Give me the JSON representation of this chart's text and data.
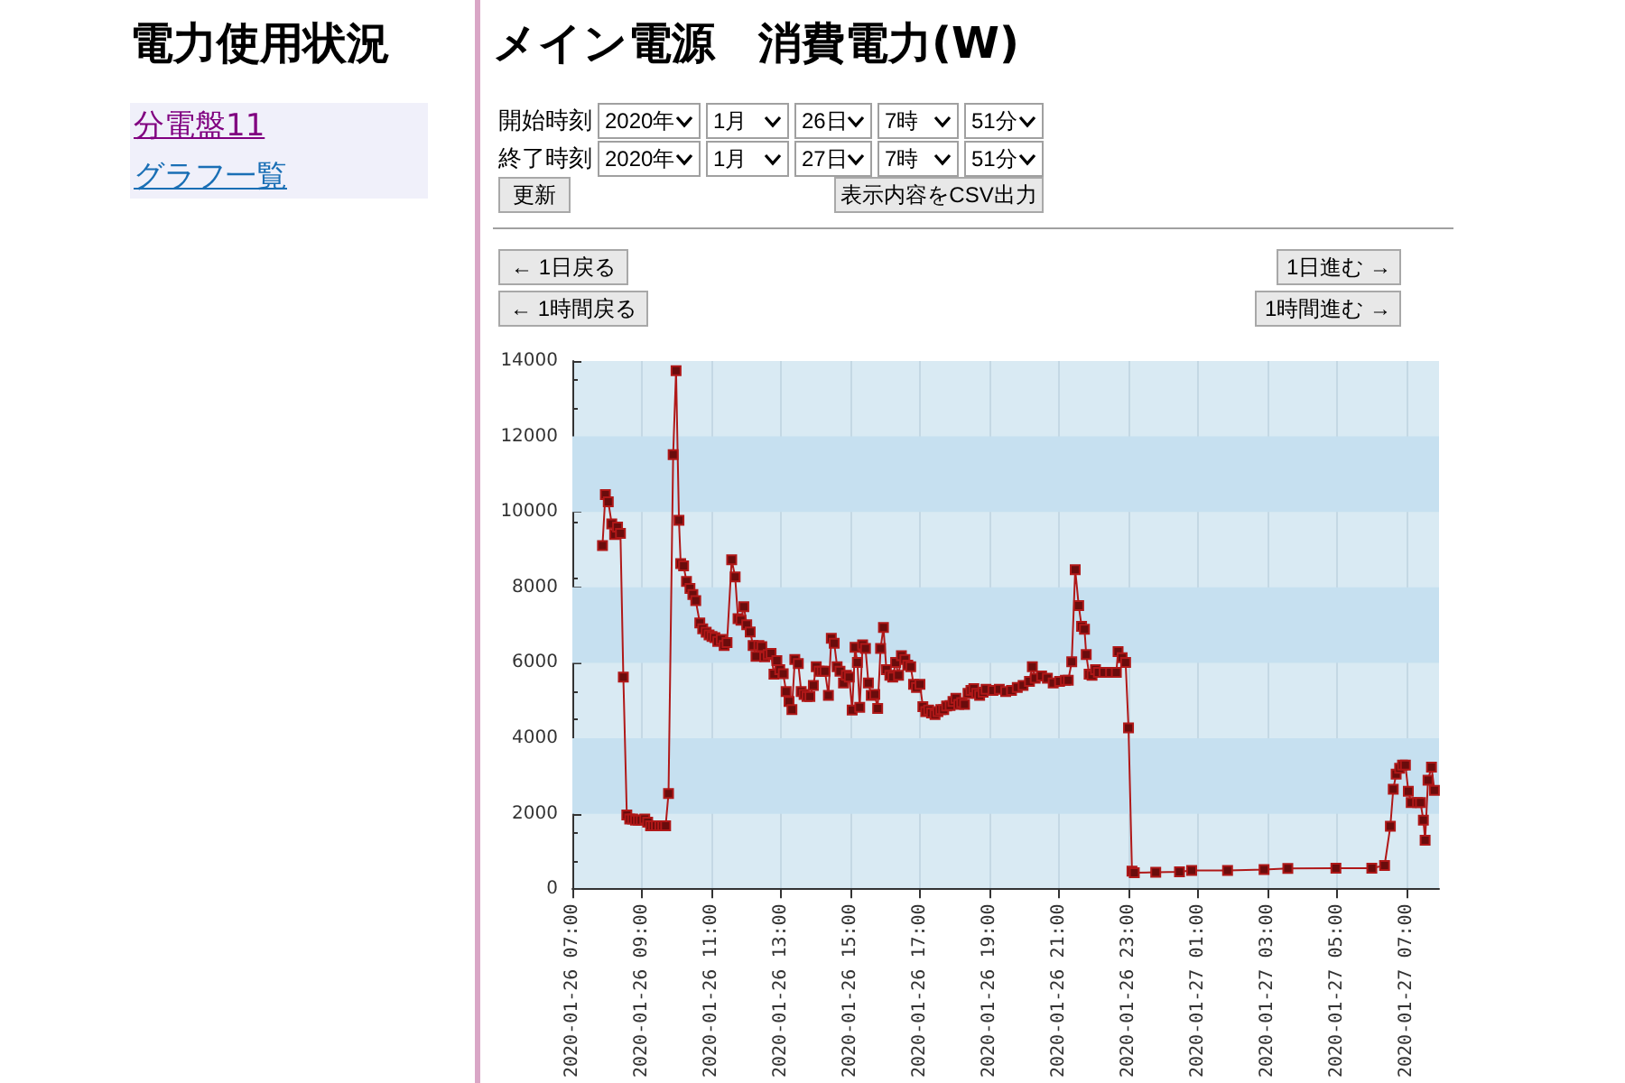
{
  "chart_data": {
    "type": "line",
    "title": "メイン電源　消費電力(W)",
    "annotations": [
      "電力使用状況",
      "分電盤11",
      "グラフ一覧",
      "開始時刻",
      "2020年",
      "1月",
      "26日",
      "7時",
      "51分",
      "終了時刻",
      "2020年",
      "1月",
      "27日",
      "7時",
      "51分",
      "更新",
      "表示内容をCSV出力",
      "← 1日戻る",
      "← 1時間戻る",
      "1日進む →",
      "1時間進む →"
    ],
    "x": [
      "2020-01-26T07:52",
      "2020-01-26T07:57",
      "2020-01-26T08:02",
      "2020-01-26T08:08",
      "2020-01-26T08:13",
      "2020-01-26T08:18",
      "2020-01-26T08:23",
      "2020-01-26T08:28",
      "2020-01-26T08:34",
      "2020-01-26T08:39",
      "2020-01-26T08:44",
      "2020-01-26T08:49",
      "2020-01-26T08:54",
      "2020-01-26T08:59",
      "2020-01-26T09:05",
      "2020-01-26T09:10",
      "2020-01-26T09:15",
      "2020-01-26T09:20",
      "2020-01-26T09:25",
      "2020-01-26T09:31",
      "2020-01-26T09:36",
      "2020-01-26T09:41",
      "2020-01-26T09:46",
      "2020-01-26T09:54",
      "2020-01-26T09:59",
      "2020-01-26T10:04",
      "2020-01-26T10:07",
      "2020-01-26T10:12",
      "2020-01-26T10:17",
      "2020-01-26T10:23",
      "2020-01-26T10:28",
      "2020-01-26T10:33",
      "2020-01-26T10:40",
      "2020-01-26T10:45",
      "2020-01-26T10:51",
      "2020-01-26T10:56",
      "2020-01-26T11:01",
      "2020-01-26T11:06",
      "2020-01-26T11:11",
      "2020-01-26T11:17",
      "2020-01-26T11:22",
      "2020-01-26T11:27",
      "2020-01-26T11:35",
      "2020-01-26T11:41",
      "2020-01-26T11:46",
      "2020-01-26T11:51",
      "2020-01-26T11:56",
      "2020-01-26T12:01",
      "2020-01-26T12:07",
      "2020-01-26T12:12",
      "2020-01-26T12:17",
      "2020-01-26T12:22",
      "2020-01-26T12:27",
      "2020-01-26T12:32",
      "2020-01-26T12:38",
      "2020-01-26T12:43",
      "2020-01-26T12:48",
      "2020-01-26T12:53",
      "2020-01-26T12:58",
      "2020-01-26T13:04",
      "2020-01-26T13:09",
      "2020-01-26T13:14",
      "2020-01-26T13:19",
      "2020-01-26T13:24",
      "2020-01-26T13:30",
      "2020-01-26T13:35",
      "2020-01-26T13:40",
      "2020-01-26T13:45",
      "2020-01-26T13:50",
      "2020-01-26T13:56",
      "2020-01-26T14:01",
      "2020-01-26T14:06",
      "2020-01-26T14:11",
      "2020-01-26T14:16",
      "2020-01-26T14:22",
      "2020-01-26T14:27",
      "2020-01-26T14:32",
      "2020-01-26T14:37",
      "2020-01-26T14:42",
      "2020-01-26T14:48",
      "2020-01-26T14:53",
      "2020-01-26T14:58",
      "2020-01-26T15:03",
      "2020-01-26T15:08",
      "2020-01-26T15:12",
      "2020-01-26T15:16",
      "2020-01-26T15:21",
      "2020-01-26T15:26",
      "2020-01-26T15:31",
      "2020-01-26T15:36",
      "2020-01-26T15:42",
      "2020-01-26T15:47",
      "2020-01-26T15:52",
      "2020-01-26T15:57",
      "2020-01-26T16:02",
      "2020-01-26T16:08",
      "2020-01-26T16:13",
      "2020-01-26T16:18",
      "2020-01-26T16:23",
      "2020-01-26T16:28",
      "2020-01-26T16:34",
      "2020-01-26T16:39",
      "2020-01-26T16:44",
      "2020-01-26T16:49",
      "2020-01-26T16:54",
      "2020-01-26T17:00",
      "2020-01-26T17:05",
      "2020-01-26T17:10",
      "2020-01-26T17:15",
      "2020-01-26T17:20",
      "2020-01-26T17:26",
      "2020-01-26T17:31",
      "2020-01-26T17:36",
      "2020-01-26T17:41",
      "2020-01-26T17:46",
      "2020-01-26T17:52",
      "2020-01-26T17:57",
      "2020-01-26T18:02",
      "2020-01-26T18:07",
      "2020-01-26T18:12",
      "2020-01-26T18:17",
      "2020-01-26T18:23",
      "2020-01-26T18:28",
      "2020-01-26T18:33",
      "2020-01-26T18:38",
      "2020-01-26T18:43",
      "2020-01-26T18:49",
      "2020-01-26T18:54",
      "2020-01-26T19:06",
      "2020-01-26T19:17",
      "2020-01-26T19:28",
      "2020-01-26T19:38",
      "2020-01-26T19:48",
      "2020-01-26T19:58",
      "2020-01-26T20:09",
      "2020-01-26T20:14",
      "2020-01-26T20:19",
      "2020-01-26T20:30",
      "2020-01-26T20:40",
      "2020-01-26T20:50",
      "2020-01-26T21:01",
      "2020-01-26T21:11",
      "2020-01-26T21:16",
      "2020-01-26T21:22",
      "2020-01-26T21:28",
      "2020-01-26T21:34",
      "2020-01-26T21:39",
      "2020-01-26T21:44",
      "2020-01-26T21:47",
      "2020-01-26T21:52",
      "2020-01-26T21:57",
      "2020-01-26T22:03",
      "2020-01-26T22:08",
      "2020-01-26T22:18",
      "2020-01-26T22:29",
      "2020-01-26T22:39",
      "2020-01-26T22:42",
      "2020-01-26T22:49",
      "2020-01-26T22:55",
      "2020-01-26T23:00",
      "2020-01-26T23:06",
      "2020-01-26T23:10",
      "2020-01-26T23:47",
      "2020-01-27T00:28",
      "2020-01-27T00:49",
      "2020-01-27T01:51",
      "2020-01-27T02:54",
      "2020-01-27T03:35",
      "2020-01-27T04:58",
      "2020-01-27T06:00",
      "2020-01-27T06:22",
      "2020-01-27T06:32",
      "2020-01-27T06:37",
      "2020-01-27T06:42",
      "2020-01-27T06:48",
      "2020-01-27T06:53",
      "2020-01-27T06:58",
      "2020-01-27T07:03",
      "2020-01-27T07:08",
      "2020-01-27T07:19",
      "2020-01-27T07:24",
      "2020-01-27T07:29",
      "2020-01-27T07:32",
      "2020-01-27T07:37",
      "2020-01-27T07:43",
      "2020-01-27T07:48"
    ],
    "series": [
      {
        "color": "#b01818",
        "values": [
          9110,
          10460,
          10270,
          9680,
          9400,
          9600,
          9430,
          5620,
          1970,
          1860,
          1860,
          1830,
          1830,
          1830,
          1860,
          1780,
          1680,
          1680,
          1680,
          1680,
          1680,
          1680,
          2540,
          11520,
          13740,
          9780,
          8630,
          8570,
          8160,
          7970,
          7810,
          7650,
          7060,
          6900,
          6810,
          6740,
          6700,
          6670,
          6570,
          6620,
          6460,
          6540,
          8730,
          8280,
          7170,
          7130,
          7490,
          7010,
          6820,
          6460,
          6170,
          6460,
          6430,
          6160,
          6220,
          6250,
          5700,
          6060,
          5820,
          5710,
          5240,
          4980,
          4760,
          6090,
          5980,
          5240,
          5160,
          5110,
          5110,
          5400,
          5900,
          5780,
          5780,
          5780,
          5140,
          6650,
          6520,
          5900,
          5780,
          5470,
          5670,
          5620,
          4750,
          6410,
          6010,
          4820,
          6480,
          6380,
          5470,
          5140,
          5160,
          4790,
          6380,
          6940,
          5820,
          5670,
          5620,
          6010,
          5670,
          6190,
          6090,
          5940,
          5900,
          5430,
          5350,
          5430,
          4840,
          4710,
          4750,
          4670,
          4630,
          4710,
          4760,
          4760,
          4860,
          4870,
          4980,
          5060,
          4900,
          4950,
          4900,
          5190,
          5270,
          5320,
          5190,
          5140,
          5220,
          5300,
          5270,
          5300,
          5240,
          5270,
          5350,
          5400,
          5510,
          5900,
          5590,
          5650,
          5590,
          5470,
          5510,
          5540,
          5540,
          6030,
          8470,
          7520,
          6970,
          6890,
          6220,
          5700,
          5670,
          5820,
          5750,
          5750,
          5750,
          5750,
          6300,
          6140,
          6010,
          4280,
          480,
          440,
          450,
          460,
          500,
          500,
          520,
          550,
          560,
          560,
          630,
          1670,
          2650,
          3050,
          3210,
          3290,
          3290,
          2600,
          2300,
          2300,
          2300,
          1830,
          1300,
          2890,
          3240,
          2620
        ]
      }
    ],
    "xlim": [
      "2020-01-26T07:00",
      "2020-01-27T07:56"
    ],
    "xticks": [
      {
        "value": "2020-01-26T07:00",
        "label": "2020-01-26 07:00"
      },
      {
        "value": "2020-01-26T09:00",
        "label": "2020-01-26 09:00"
      },
      {
        "value": "2020-01-26T11:00",
        "label": "2020-01-26 11:00"
      },
      {
        "value": "2020-01-26T13:00",
        "label": "2020-01-26 13:00"
      },
      {
        "value": "2020-01-26T15:00",
        "label": "2020-01-26 15:00"
      },
      {
        "value": "2020-01-26T17:00",
        "label": "2020-01-26 17:00"
      },
      {
        "value": "2020-01-26T19:00",
        "label": "2020-01-26 19:00"
      },
      {
        "value": "2020-01-26T21:00",
        "label": "2020-01-26 21:00"
      },
      {
        "value": "2020-01-26T23:00",
        "label": "2020-01-26 23:00"
      },
      {
        "value": "2020-01-27T01:00",
        "label": "2020-01-27 01:00"
      },
      {
        "value": "2020-01-27T03:00",
        "label": "2020-01-27 03:00"
      },
      {
        "value": "2020-01-27T05:00",
        "label": "2020-01-27 05:00"
      },
      {
        "value": "2020-01-27T07:00",
        "label": "2020-01-27 07:00"
      }
    ],
    "ylim": [
      0,
      14000
    ],
    "yticks": [
      0,
      2000,
      4000,
      6000,
      8000,
      10000,
      12000,
      14000
    ],
    "bands": [
      {
        "axis": "y",
        "from": 2000,
        "to": 4000,
        "color": "#c6e0f0"
      },
      {
        "axis": "y",
        "from": 6000,
        "to": 8000,
        "color": "#c6e0f0"
      },
      {
        "axis": "y",
        "from": 10000,
        "to": 12000,
        "color": "#c6e0f0"
      }
    ],
    "grid": "x",
    "marker": "square",
    "line_style": "solid"
  }
}
